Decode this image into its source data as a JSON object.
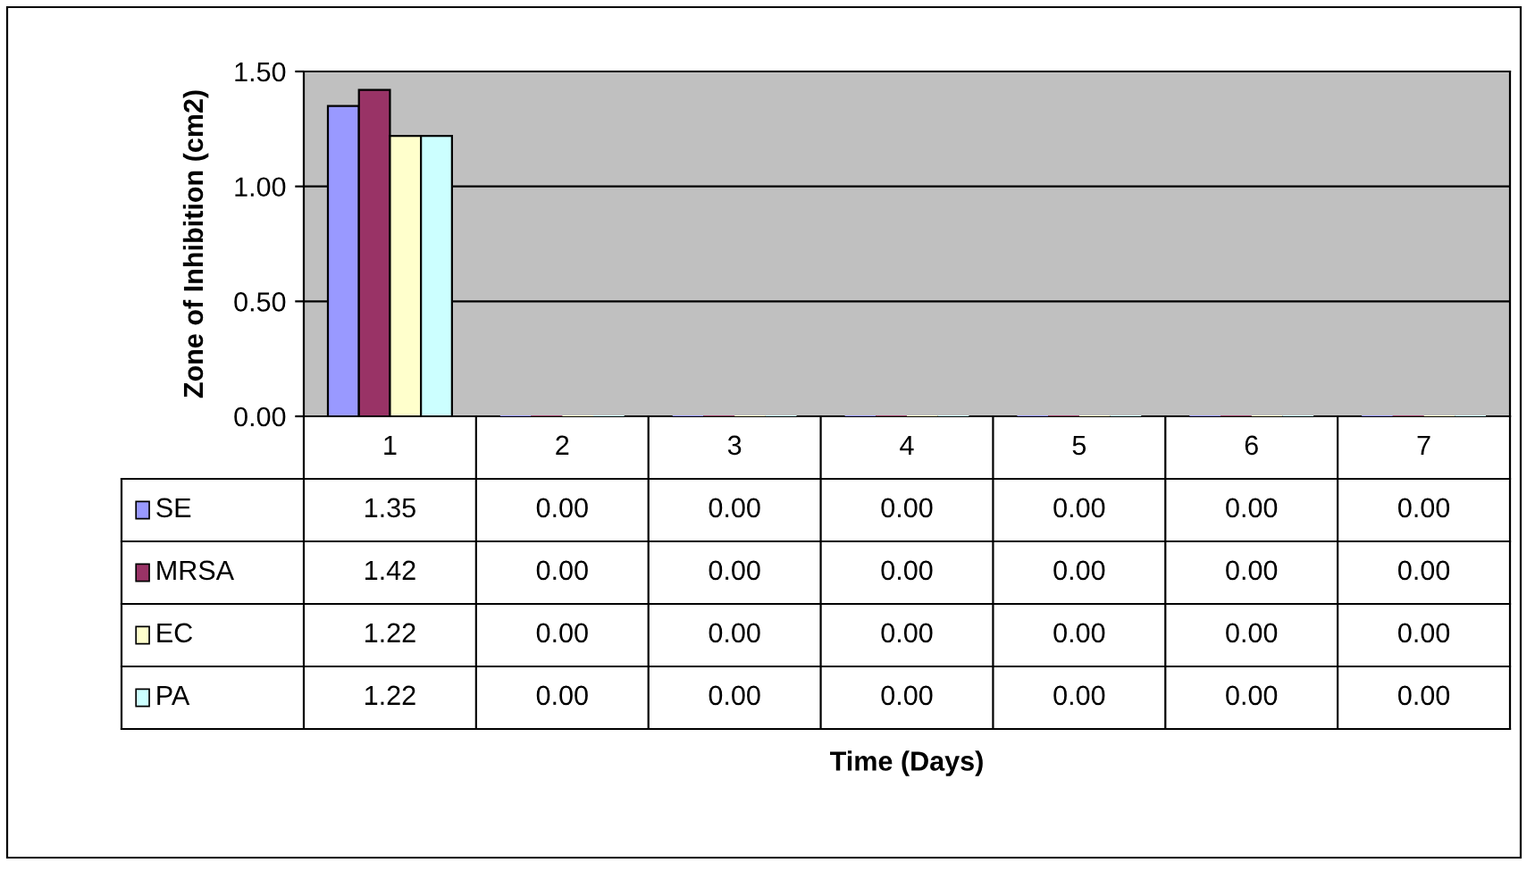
{
  "chart_data": {
    "type": "bar",
    "ylabel": "Zone of Inhibition (cm2)",
    "annotations": [
      "Time (Days)"
    ],
    "categories": [
      "1",
      "2",
      "3",
      "4",
      "5",
      "6",
      "7"
    ],
    "series": [
      {
        "name": "SE",
        "color": "#9999ff",
        "values": [
          1.35,
          0,
          0,
          0,
          0,
          0,
          0
        ],
        "value_labels": [
          "1.35",
          "0.00",
          "0.00",
          "0.00",
          "0.00",
          "0.00",
          "0.00"
        ]
      },
      {
        "name": "MRSA",
        "color": "#993366",
        "values": [
          1.42,
          0,
          0,
          0,
          0,
          0,
          0
        ],
        "value_labels": [
          "1.42",
          "0.00",
          "0.00",
          "0.00",
          "0.00",
          "0.00",
          "0.00"
        ]
      },
      {
        "name": "EC",
        "color": "#ffffcc",
        "values": [
          1.22,
          0,
          0,
          0,
          0,
          0,
          0
        ],
        "value_labels": [
          "1.22",
          "0.00",
          "0.00",
          "0.00",
          "0.00",
          "0.00",
          "0.00"
        ]
      },
      {
        "name": "PA",
        "color": "#ccffff",
        "values": [
          1.22,
          0,
          0,
          0,
          0,
          0,
          0
        ],
        "value_labels": [
          "1.22",
          "0.00",
          "0.00",
          "0.00",
          "0.00",
          "0.00",
          "0.00"
        ]
      }
    ],
    "ylim": [
      0,
      1.5
    ],
    "yticks": [
      {
        "value": 0,
        "label": "0.00"
      },
      {
        "value": 0.5,
        "label": "0.50"
      },
      {
        "value": 1,
        "label": "1.00"
      },
      {
        "value": 1.5,
        "label": "1.50"
      }
    ],
    "grid": "y",
    "legend": "bottom left"
  }
}
